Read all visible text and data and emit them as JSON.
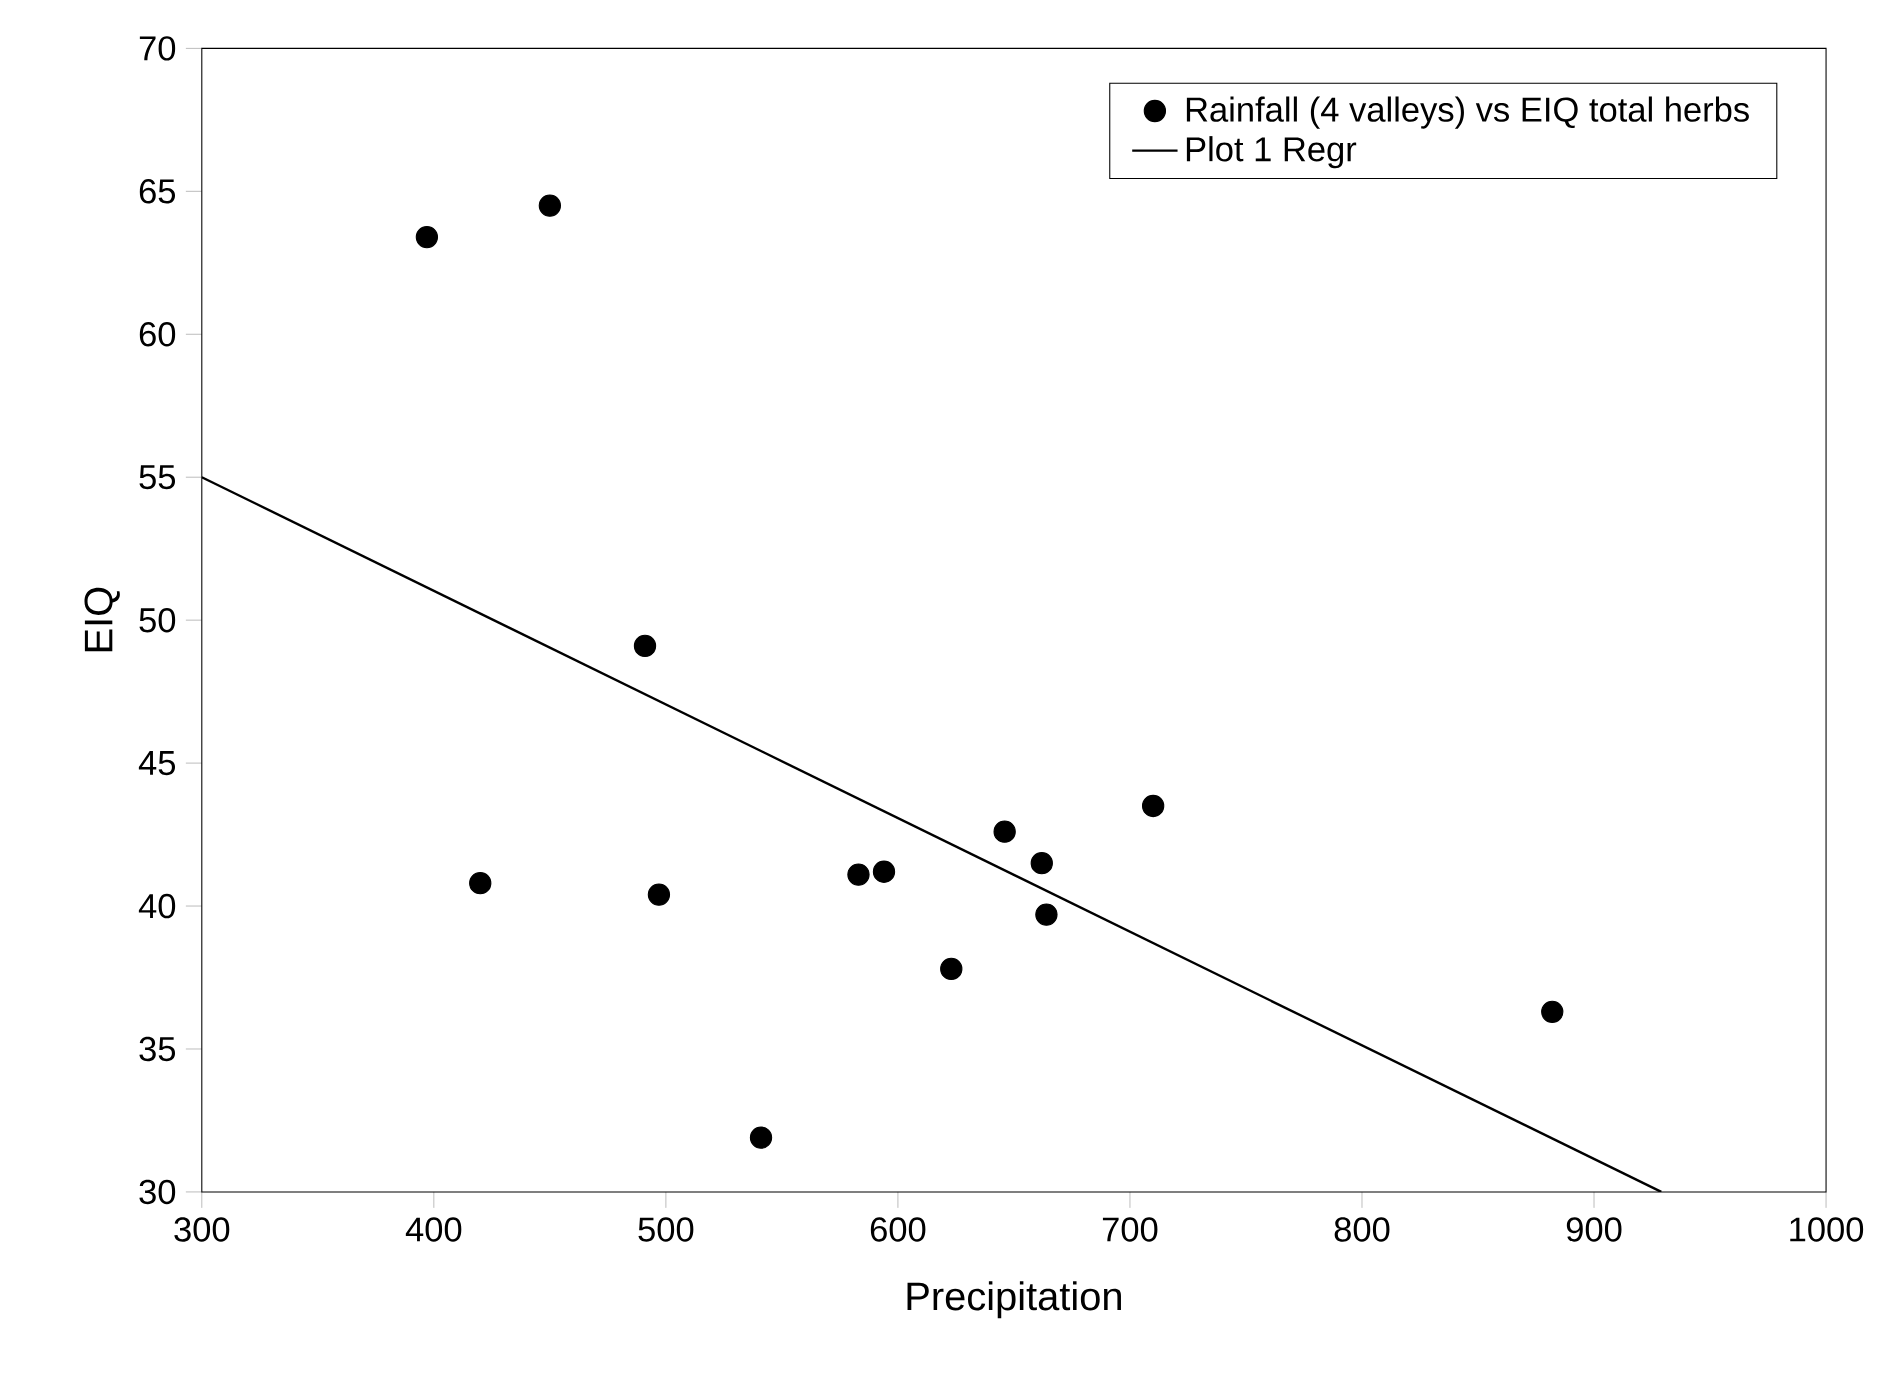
{
  "chart_data": {
    "type": "scatter",
    "xlabel": "Precipitation",
    "ylabel": "EIQ",
    "xlim": [
      300,
      1000
    ],
    "ylim": [
      30,
      70
    ],
    "xticks": [
      300,
      400,
      500,
      600,
      700,
      800,
      900,
      1000
    ],
    "yticks": [
      30,
      35,
      40,
      45,
      50,
      55,
      60,
      65,
      70
    ],
    "legend": "top right",
    "grid": false,
    "series": [
      {
        "name": "Rainfall (4 valleys) vs EIQ total herbs",
        "color": "#000000",
        "marker": "circle",
        "x": [
          397,
          450,
          491,
          420,
          497,
          541,
          583,
          594,
          623,
          646,
          662,
          664,
          710,
          882
        ],
        "values": [
          63.4,
          64.5,
          49.1,
          40.8,
          40.4,
          31.9,
          41.1,
          41.2,
          37.8,
          42.6,
          41.5,
          39.7,
          43.5,
          36.3
        ]
      },
      {
        "name": "Plot 1 Regr",
        "type": "line",
        "color": "#000000",
        "marker": "none",
        "line_style": "solid",
        "x": [
          300,
          929
        ],
        "values": [
          55,
          30
        ]
      }
    ]
  }
}
